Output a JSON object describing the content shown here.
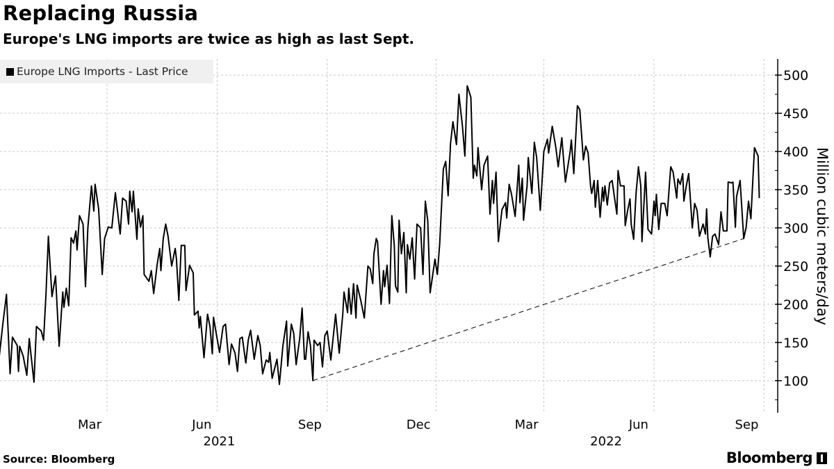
{
  "header": {
    "title": "Replacing Russia",
    "subtitle": "Europe's LNG imports are twice as high as last Sept."
  },
  "footer": {
    "source": "Source: Bloomberg",
    "logo": "Bloomberg"
  },
  "chart_data": {
    "type": "line",
    "title": "Replacing Russia",
    "subtitle": "Europe's LNG imports are twice as high as last Sept.",
    "legend": {
      "entries": [
        "Europe LNG Imports - Last Price"
      ],
      "placement": "top-left"
    },
    "ylabel": "Million cubic meters/day",
    "xlabel": "",
    "x_unit": "days since 2020-12-01",
    "xlim": [
      0,
      644
    ],
    "ylim": [
      58,
      521
    ],
    "grid": true,
    "y_axis_side": "right",
    "y_ticks": [
      100,
      150,
      200,
      250,
      300,
      350,
      400,
      450,
      500
    ],
    "x_ticks": [
      {
        "day": 90,
        "label": "Mar"
      },
      {
        "day": 182,
        "label": "Jun"
      },
      {
        "day": 274,
        "label": "Sep"
      },
      {
        "day": 365,
        "label": "Dec"
      },
      {
        "day": 455,
        "label": "Mar"
      },
      {
        "day": 547,
        "label": "Jun"
      },
      {
        "day": 639,
        "label": "Sep"
      }
    ],
    "year_labels": [
      {
        "day": 182,
        "label": "2021"
      },
      {
        "day": 507,
        "label": "2022"
      }
    ],
    "series": [
      {
        "name": "Europe LNG Imports - Last Price",
        "color": "#000000",
        "points": [
          [
            0,
            132
          ],
          [
            3,
            175
          ],
          [
            6,
            213
          ],
          [
            9,
            109
          ],
          [
            11,
            157
          ],
          [
            15,
            146
          ],
          [
            16,
            112
          ],
          [
            17,
            145
          ],
          [
            20,
            132
          ],
          [
            23,
            107
          ],
          [
            25,
            155
          ],
          [
            29,
            98
          ],
          [
            31,
            171
          ],
          [
            35,
            165
          ],
          [
            37,
            153
          ],
          [
            39,
            214
          ],
          [
            41,
            289
          ],
          [
            44,
            210
          ],
          [
            47,
            237
          ],
          [
            50,
            145
          ],
          [
            53,
            216
          ],
          [
            54,
            196
          ],
          [
            56,
            221
          ],
          [
            58,
            198
          ],
          [
            60,
            287
          ],
          [
            62,
            280
          ],
          [
            64,
            296
          ],
          [
            65,
            271
          ],
          [
            67,
            316
          ],
          [
            70,
            305
          ],
          [
            72,
            223
          ],
          [
            74,
            300
          ],
          [
            77,
            355
          ],
          [
            79,
            322
          ],
          [
            80,
            357
          ],
          [
            83,
            325
          ],
          [
            86,
            239
          ],
          [
            88,
            286
          ],
          [
            91,
            301
          ],
          [
            94,
            300
          ],
          [
            97,
            346
          ],
          [
            101,
            292
          ],
          [
            103,
            339
          ],
          [
            106,
            335
          ],
          [
            108,
            305
          ],
          [
            109,
            348
          ],
          [
            111,
            321
          ],
          [
            112,
            348
          ],
          [
            115,
            285
          ],
          [
            116,
            325
          ],
          [
            118,
            301
          ],
          [
            120,
            316
          ],
          [
            121,
            239
          ],
          [
            125,
            230
          ],
          [
            127,
            244
          ],
          [
            129,
            214
          ],
          [
            132,
            253
          ],
          [
            134,
            273
          ],
          [
            135,
            244
          ],
          [
            137,
            286
          ],
          [
            139,
            305
          ],
          [
            141,
            289
          ],
          [
            144,
            250
          ],
          [
            147,
            273
          ],
          [
            148,
            259
          ],
          [
            150,
            205
          ],
          [
            152,
            277
          ],
          [
            155,
            277
          ],
          [
            156,
            218
          ],
          [
            159,
            251
          ],
          [
            162,
            241
          ],
          [
            163,
            186
          ],
          [
            166,
            191
          ],
          [
            167,
            169
          ],
          [
            168,
            184
          ],
          [
            171,
            130
          ],
          [
            174,
            187
          ],
          [
            176,
            171
          ],
          [
            178,
            135
          ],
          [
            179,
            183
          ],
          [
            182,
            155
          ],
          [
            184,
            137
          ],
          [
            187,
            171
          ],
          [
            189,
            174
          ],
          [
            192,
            121
          ],
          [
            194,
            148
          ],
          [
            197,
            136
          ],
          [
            199,
            112
          ],
          [
            201,
            155
          ],
          [
            203,
            157
          ],
          [
            206,
            123
          ],
          [
            208,
            153
          ],
          [
            210,
            166
          ],
          [
            213,
            128
          ],
          [
            216,
            159
          ],
          [
            218,
            146
          ],
          [
            220,
            109
          ],
          [
            223,
            127
          ],
          [
            225,
            124
          ],
          [
            226,
            137
          ],
          [
            228,
            103
          ],
          [
            232,
            128
          ],
          [
            234,
            95
          ],
          [
            237,
            146
          ],
          [
            240,
            178
          ],
          [
            241,
            119
          ],
          [
            244,
            174
          ],
          [
            246,
            162
          ],
          [
            248,
            121
          ],
          [
            251,
            155
          ],
          [
            253,
            195
          ],
          [
            255,
            128
          ],
          [
            256,
            128
          ],
          [
            258,
            164
          ],
          [
            260,
            146
          ],
          [
            262,
            100
          ],
          [
            263,
            153
          ],
          [
            266,
            146
          ],
          [
            268,
            150
          ],
          [
            270,
            118
          ],
          [
            272,
            159
          ],
          [
            274,
            165
          ],
          [
            277,
            127
          ],
          [
            281,
            187
          ],
          [
            284,
            136
          ],
          [
            287,
            187
          ],
          [
            288,
            216
          ],
          [
            291,
            189
          ],
          [
            292,
            221
          ],
          [
            294,
            187
          ],
          [
            296,
            227
          ],
          [
            298,
            182
          ],
          [
            299,
            225
          ],
          [
            302,
            205
          ],
          [
            305,
            182
          ],
          [
            308,
            250
          ],
          [
            310,
            246
          ],
          [
            312,
            227
          ],
          [
            313,
            266
          ],
          [
            315,
            286
          ],
          [
            316,
            282
          ],
          [
            319,
            200
          ],
          [
            321,
            244
          ],
          [
            322,
            223
          ],
          [
            324,
            251
          ],
          [
            326,
            201
          ],
          [
            328,
            316
          ],
          [
            330,
            277
          ],
          [
            331,
            224
          ],
          [
            333,
            216
          ],
          [
            334,
            310
          ],
          [
            336,
            266
          ],
          [
            338,
            294
          ],
          [
            340,
            215
          ],
          [
            341,
            278
          ],
          [
            343,
            259
          ],
          [
            345,
            287
          ],
          [
            347,
            233
          ],
          [
            349,
            305
          ],
          [
            352,
            300
          ],
          [
            354,
            239
          ],
          [
            356,
            335
          ],
          [
            358,
            309
          ],
          [
            360,
            215
          ],
          [
            362,
            237
          ],
          [
            364,
            259
          ],
          [
            366,
            239
          ],
          [
            368,
            280
          ],
          [
            371,
            377
          ],
          [
            373,
            387
          ],
          [
            375,
            342
          ],
          [
            377,
            410
          ],
          [
            379,
            439
          ],
          [
            382,
            409
          ],
          [
            384,
            475
          ],
          [
            387,
            433
          ],
          [
            389,
            394
          ],
          [
            391,
            486
          ],
          [
            394,
            471
          ],
          [
            396,
            365
          ],
          [
            397,
            382
          ],
          [
            399,
            368
          ],
          [
            400,
            405
          ],
          [
            403,
            350
          ],
          [
            405,
            382
          ],
          [
            408,
            394
          ],
          [
            410,
            318
          ],
          [
            412,
            362
          ],
          [
            413,
            332
          ],
          [
            415,
            373
          ],
          [
            417,
            282
          ],
          [
            420,
            324
          ],
          [
            423,
            333
          ],
          [
            424,
            313
          ],
          [
            426,
            357
          ],
          [
            428,
            344
          ],
          [
            431,
            315
          ],
          [
            434,
            382
          ],
          [
            435,
            333
          ],
          [
            437,
            365
          ],
          [
            438,
            310
          ],
          [
            441,
            355
          ],
          [
            442,
            392
          ],
          [
            445,
            345
          ],
          [
            447,
            412
          ],
          [
            449,
            392
          ],
          [
            452,
            323
          ],
          [
            455,
            400
          ],
          [
            458,
            416
          ],
          [
            459,
            398
          ],
          [
            462,
            433
          ],
          [
            465,
            405
          ],
          [
            467,
            380
          ],
          [
            470,
            418
          ],
          [
            473,
            360
          ],
          [
            477,
            400
          ],
          [
            478,
            415
          ],
          [
            480,
            371
          ],
          [
            483,
            460
          ],
          [
            485,
            455
          ],
          [
            488,
            389
          ],
          [
            490,
            407
          ],
          [
            492,
            398
          ],
          [
            494,
            355
          ],
          [
            495,
            345
          ],
          [
            497,
            362
          ],
          [
            498,
            327
          ],
          [
            500,
            362
          ],
          [
            502,
            314
          ],
          [
            504,
            353
          ],
          [
            505,
            335
          ],
          [
            506,
            355
          ],
          [
            508,
            330
          ],
          [
            510,
            359
          ],
          [
            512,
            362
          ],
          [
            516,
            318
          ],
          [
            517,
            375
          ],
          [
            519,
            355
          ],
          [
            522,
            355
          ],
          [
            523,
            303
          ],
          [
            525,
            323
          ],
          [
            527,
            338
          ],
          [
            528,
            305
          ],
          [
            530,
            285
          ],
          [
            532,
            344
          ],
          [
            534,
            380
          ],
          [
            536,
            355
          ],
          [
            537,
            282
          ],
          [
            540,
            373
          ],
          [
            541,
            335
          ],
          [
            542,
            298
          ],
          [
            545,
            292
          ],
          [
            547,
            335
          ],
          [
            548,
            316
          ],
          [
            549,
            344
          ],
          [
            551,
            298
          ],
          [
            553,
            332
          ],
          [
            556,
            332
          ],
          [
            558,
            316
          ],
          [
            561,
            380
          ],
          [
            563,
            373
          ],
          [
            566,
            339
          ],
          [
            567,
            364
          ],
          [
            569,
            357
          ],
          [
            571,
            371
          ],
          [
            572,
            335
          ],
          [
            574,
            355
          ],
          [
            576,
            371
          ],
          [
            579,
            300
          ],
          [
            581,
            332
          ],
          [
            583,
            323
          ],
          [
            585,
            289
          ],
          [
            588,
            305
          ],
          [
            590,
            292
          ],
          [
            591,
            325
          ],
          [
            592,
            287
          ],
          [
            594,
            262
          ],
          [
            596,
            289
          ],
          [
            598,
            292
          ],
          [
            601,
            278
          ],
          [
            603,
            321
          ],
          [
            605,
            296
          ],
          [
            608,
            296
          ],
          [
            609,
            360
          ],
          [
            612,
            359
          ],
          [
            613,
            360
          ],
          [
            615,
            301
          ],
          [
            616,
            341
          ],
          [
            619,
            362
          ],
          [
            622,
            286
          ],
          [
            624,
            301
          ],
          [
            626,
            335
          ],
          [
            628,
            312
          ],
          [
            631,
            405
          ],
          [
            634,
            394
          ],
          [
            635,
            339
          ]
        ]
      }
    ],
    "annotations": [
      {
        "type": "dashed-trendline",
        "from": [
          262,
          100
        ],
        "to": [
          622,
          286
        ]
      }
    ]
  }
}
